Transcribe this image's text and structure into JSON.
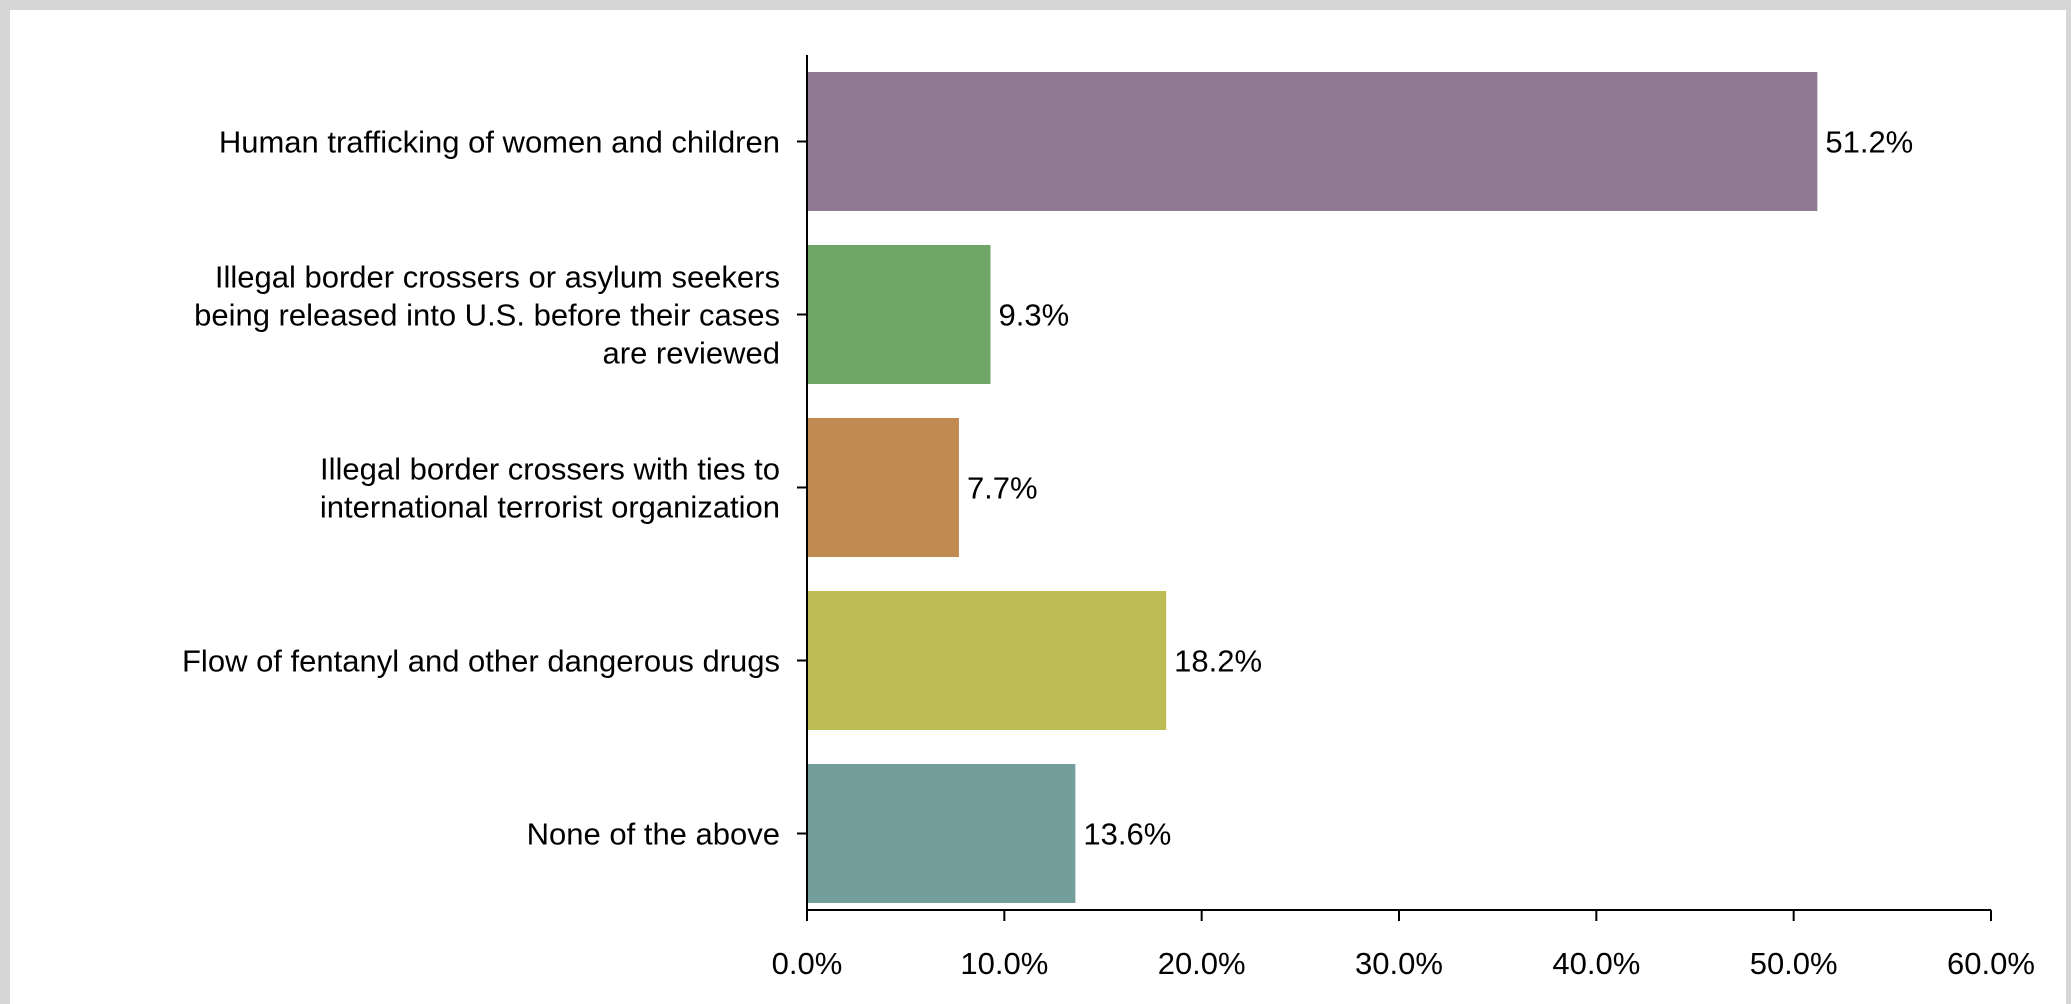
{
  "chart_data": {
    "type": "bar",
    "orientation": "horizontal",
    "title": "",
    "xlabel": "",
    "ylabel": "",
    "xlim": [
      0,
      60
    ],
    "grid": false,
    "legend": "none",
    "categories": [
      [
        "Human trafficking of women and children"
      ],
      [
        "Illegal border crossers or asylum seekers",
        "being released into U.S. before their cases",
        "are reviewed"
      ],
      [
        "Illegal border crossers with ties to",
        "international terrorist organization"
      ],
      [
        "Flow of fentanyl and other dangerous drugs"
      ],
      [
        "None of the above"
      ]
    ],
    "values": [
      51.2,
      9.3,
      7.7,
      18.2,
      13.6
    ],
    "value_labels": [
      "51.2%",
      "9.3%",
      "7.7%",
      "18.2%",
      "13.6%"
    ],
    "colors": [
      "#8e7a93",
      "#6fa668",
      "#c08a51",
      "#bbbd53",
      "#739e9b"
    ],
    "x_ticks": [
      0,
      10,
      20,
      30,
      40,
      50,
      60
    ],
    "x_tick_labels": [
      "0.0%",
      "10.0%",
      "20.0%",
      "30.0%",
      "40.0%",
      "50.0%",
      "60.0%"
    ]
  }
}
